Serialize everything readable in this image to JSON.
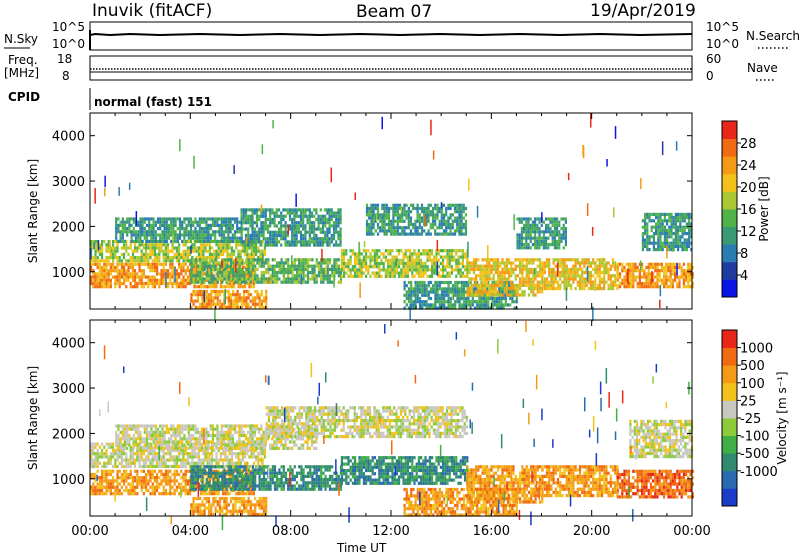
{
  "header": {
    "station": "Inuvik (fitACF)",
    "beam": "Beam 07",
    "date": "19/Apr/2019"
  },
  "status_panels": {
    "nsky_label": "N.Sky",
    "nsearch_label": "N.Search",
    "noise_ticks_left": [
      "10^5",
      "10^0"
    ],
    "noise_ticks_right": [
      "10^5",
      "10^0"
    ],
    "freq_label": "Freq.",
    "freq_unit": "[MHz]",
    "freq_ticks": [
      "18",
      "8"
    ],
    "nave_label": "Nave",
    "nave_ticks": [
      "60",
      "0"
    ],
    "cpid_label": "CPID",
    "cpid_value": "normal (fast) 151"
  },
  "chart_data": [
    {
      "type": "heatmap",
      "name": "power",
      "ylabel": "Slant Range [km]",
      "ylim": [
        180,
        4500
      ],
      "yticks": [
        "1000",
        "2000",
        "3000",
        "4000"
      ],
      "xlim": [
        0,
        24
      ],
      "colorbar": {
        "label": "Power [dB]",
        "range": [
          0,
          32
        ],
        "ticks": [
          "4",
          "8",
          "12",
          "16",
          "20",
          "24",
          "28"
        ],
        "colors": [
          "#0a14e6",
          "#1e3ca0",
          "#2a7db2",
          "#3a9a76",
          "#4fb34a",
          "#a9c832",
          "#f2c21a",
          "#f49a16",
          "#f06a12",
          "#e8261a"
        ]
      },
      "bands": [
        {
          "t0": 0.0,
          "t1": 6.5,
          "r0": 700,
          "r1": 1200,
          "level": 26
        },
        {
          "t0": 0.0,
          "t1": 7.0,
          "r0": 1250,
          "r1": 1700,
          "level": 18
        },
        {
          "t0": 1.0,
          "t1": 6.0,
          "r0": 1700,
          "r1": 2200,
          "level": 11
        },
        {
          "t0": 4.0,
          "t1": 10.0,
          "r0": 800,
          "r1": 1300,
          "level": 14
        },
        {
          "t0": 6.0,
          "t1": 10.0,
          "r0": 1600,
          "r1": 2400,
          "level": 10
        },
        {
          "t0": 4.0,
          "t1": 7.0,
          "r0": 180,
          "r1": 600,
          "level": 24
        },
        {
          "t0": 10.0,
          "t1": 15.0,
          "r0": 900,
          "r1": 1500,
          "level": 18
        },
        {
          "t0": 11.0,
          "t1": 15.0,
          "r0": 1800,
          "r1": 2500,
          "level": 10
        },
        {
          "t0": 12.5,
          "t1": 17.0,
          "r0": 200,
          "r1": 800,
          "level": 11
        },
        {
          "t0": 15.0,
          "t1": 18.0,
          "r0": 500,
          "r1": 1300,
          "level": 23
        },
        {
          "t0": 18.0,
          "t1": 21.0,
          "r0": 600,
          "r1": 1300,
          "level": 20
        },
        {
          "t0": 17.0,
          "t1": 19.0,
          "r0": 1500,
          "r1": 2200,
          "level": 10
        },
        {
          "t0": 21.0,
          "t1": 24.0,
          "r0": 700,
          "r1": 1200,
          "level": 25
        },
        {
          "t0": 22.0,
          "t1": 24.0,
          "r0": 1500,
          "r1": 2300,
          "level": 12
        }
      ]
    },
    {
      "type": "heatmap",
      "name": "velocity",
      "ylabel": "Slant Range [km]",
      "ylim": [
        180,
        4500
      ],
      "yticks": [
        "1000",
        "2000",
        "3000",
        "4000"
      ],
      "xlabel": "Time UT",
      "xticks": [
        "00:00",
        "04:00",
        "08:00",
        "12:00",
        "16:00",
        "20:00",
        "00:00"
      ],
      "xlim": [
        0,
        24
      ],
      "colorbar": {
        "label": "Velocity [m s⁻¹]",
        "ticks": [
          "1000",
          "500",
          "100",
          "25",
          "-25",
          "-100",
          "-500",
          "-1000"
        ],
        "colors": [
          "#1a3cc8",
          "#2a6ab0",
          "#2f8a70",
          "#3fae45",
          "#8ccc3a",
          "#c8c8c0",
          "#f2c21a",
          "#f49a16",
          "#f06a12",
          "#e8261a"
        ]
      },
      "bands": [
        {
          "t0": 0.0,
          "t1": 6.5,
          "r0": 700,
          "r1": 1200,
          "level": 7
        },
        {
          "t0": 0.0,
          "t1": 7.0,
          "r0": 1300,
          "r1": 1800,
          "level": 5
        },
        {
          "t0": 1.0,
          "t1": 9.0,
          "r0": 1700,
          "r1": 2200,
          "level": 5
        },
        {
          "t0": 4.0,
          "t1": 10.0,
          "r0": 800,
          "r1": 1300,
          "level": 2
        },
        {
          "t0": 7.0,
          "t1": 15.0,
          "r0": 1900,
          "r1": 2600,
          "level": 5
        },
        {
          "t0": 4.0,
          "t1": 7.0,
          "r0": 180,
          "r1": 600,
          "level": 7
        },
        {
          "t0": 10.0,
          "t1": 15.0,
          "r0": 900,
          "r1": 1500,
          "level": 2
        },
        {
          "t0": 12.5,
          "t1": 17.0,
          "r0": 200,
          "r1": 800,
          "level": 7
        },
        {
          "t0": 15.0,
          "t1": 18.0,
          "r0": 500,
          "r1": 1300,
          "level": 7
        },
        {
          "t0": 18.0,
          "t1": 21.0,
          "r0": 600,
          "r1": 1300,
          "level": 7
        },
        {
          "t0": 21.0,
          "t1": 24.0,
          "r0": 600,
          "r1": 1200,
          "level": 8
        },
        {
          "t0": 21.5,
          "t1": 24.0,
          "r0": 1500,
          "r1": 2300,
          "level": 5
        }
      ]
    }
  ]
}
